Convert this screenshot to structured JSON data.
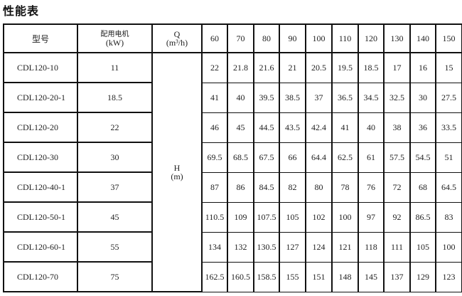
{
  "title": "性能表",
  "header": {
    "model_label": "型号",
    "motor_label": "配用电机",
    "motor_unit": "(kW)",
    "q_label": "Q",
    "q_unit": "(m³/h)",
    "flows": [
      "60",
      "70",
      "80",
      "90",
      "100",
      "110",
      "120",
      "130",
      "140",
      "150"
    ]
  },
  "h_label": "H",
  "h_unit": "(m)",
  "rows": [
    {
      "model": "CDL120-10",
      "kw": "11",
      "h": [
        "22",
        "21.8",
        "21.6",
        "21",
        "20.5",
        "19.5",
        "18.5",
        "17",
        "16",
        "15"
      ]
    },
    {
      "model": "CDL120-20-1",
      "kw": "18.5",
      "h": [
        "41",
        "40",
        "39.5",
        "38.5",
        "37",
        "36.5",
        "34.5",
        "32.5",
        "30",
        "27.5"
      ]
    },
    {
      "model": "CDL120-20",
      "kw": "22",
      "h": [
        "46",
        "45",
        "44.5",
        "43.5",
        "42.4",
        "41",
        "40",
        "38",
        "36",
        "33.5"
      ]
    },
    {
      "model": "CDL120-30",
      "kw": "30",
      "h": [
        "69.5",
        "68.5",
        "67.5",
        "66",
        "64.4",
        "62.5",
        "61",
        "57.5",
        "54.5",
        "51"
      ]
    },
    {
      "model": "CDL120-40-1",
      "kw": "37",
      "h": [
        "87",
        "86",
        "84.5",
        "82",
        "80",
        "78",
        "76",
        "72",
        "68",
        "64.5"
      ]
    },
    {
      "model": "CDL120-50-1",
      "kw": "45",
      "h": [
        "110.5",
        "109",
        "107.5",
        "105",
        "102",
        "100",
        "97",
        "92",
        "86.5",
        "83"
      ]
    },
    {
      "model": "CDL120-60-1",
      "kw": "55",
      "h": [
        "134",
        "132",
        "130.5",
        "127",
        "124",
        "121",
        "118",
        "111",
        "105",
        "100"
      ]
    },
    {
      "model": "CDL120-70",
      "kw": "75",
      "h": [
        "162.5",
        "160.5",
        "158.5",
        "155",
        "151",
        "148",
        "145",
        "137",
        "129",
        "123"
      ]
    }
  ]
}
